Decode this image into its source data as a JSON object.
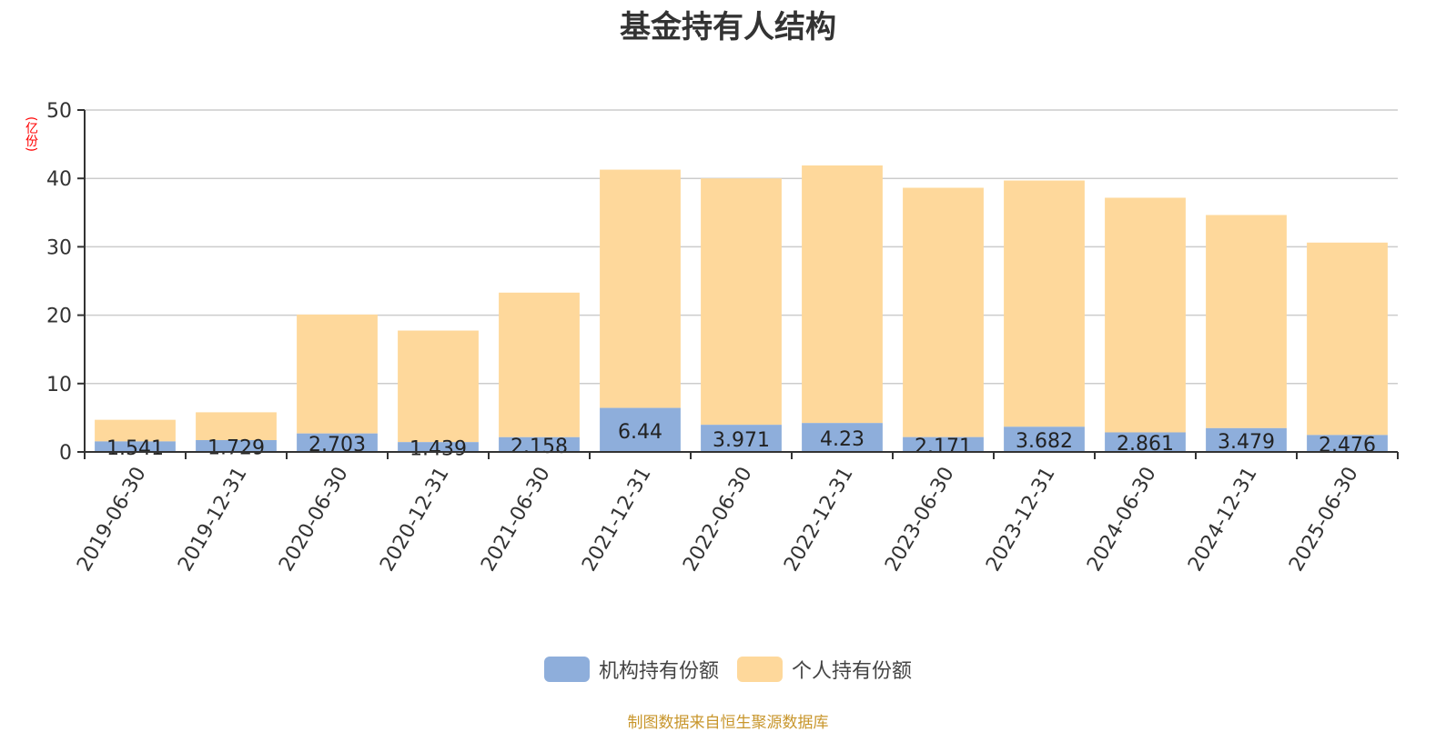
{
  "title": "基金持有人结构",
  "unit_label": "(亿份)",
  "source_note": "制图数据来自恒生聚源数据库",
  "colors": {
    "institutional": "#8eaedb",
    "individual": "#fed89b",
    "grid": "#cccccc",
    "axis": "#333333",
    "unit": "#ff0000",
    "source": "#c8962c"
  },
  "legend": [
    {
      "label": "机构持有份额",
      "color": "#8eaedb"
    },
    {
      "label": "个人持有份额",
      "color": "#fed89b"
    }
  ],
  "chart_data": {
    "type": "bar",
    "stacked": true,
    "title": "基金持有人结构",
    "xlabel": "",
    "ylabel": "(亿份)",
    "ylim": [
      0,
      50
    ],
    "yticks": [
      0,
      10,
      20,
      30,
      40,
      50
    ],
    "grid": true,
    "legend_position": "bottom",
    "categories": [
      "2019-06-30",
      "2019-12-31",
      "2020-06-30",
      "2020-12-31",
      "2021-06-30",
      "2021-12-31",
      "2022-06-30",
      "2022-12-31",
      "2023-06-30",
      "2023-12-31",
      "2024-06-30",
      "2024-12-31",
      "2025-06-30"
    ],
    "series": [
      {
        "name": "机构持有份额",
        "values": [
          1.541,
          1.729,
          2.703,
          1.439,
          2.158,
          6.44,
          3.971,
          4.23,
          2.171,
          3.682,
          2.861,
          3.479,
          2.476
        ],
        "labels": [
          "1.541",
          "1.729",
          "2.703",
          "1.439",
          "2.158",
          "6.44",
          "3.971",
          "4.23",
          "2.171",
          "3.682",
          "2.861",
          "3.479",
          "2.476"
        ]
      },
      {
        "name": "个人持有份额",
        "values": [
          3.16,
          4.07,
          17.39,
          16.31,
          21.14,
          34.84,
          36.03,
          37.67,
          36.46,
          36.01,
          34.31,
          31.17,
          28.14
        ]
      }
    ]
  }
}
